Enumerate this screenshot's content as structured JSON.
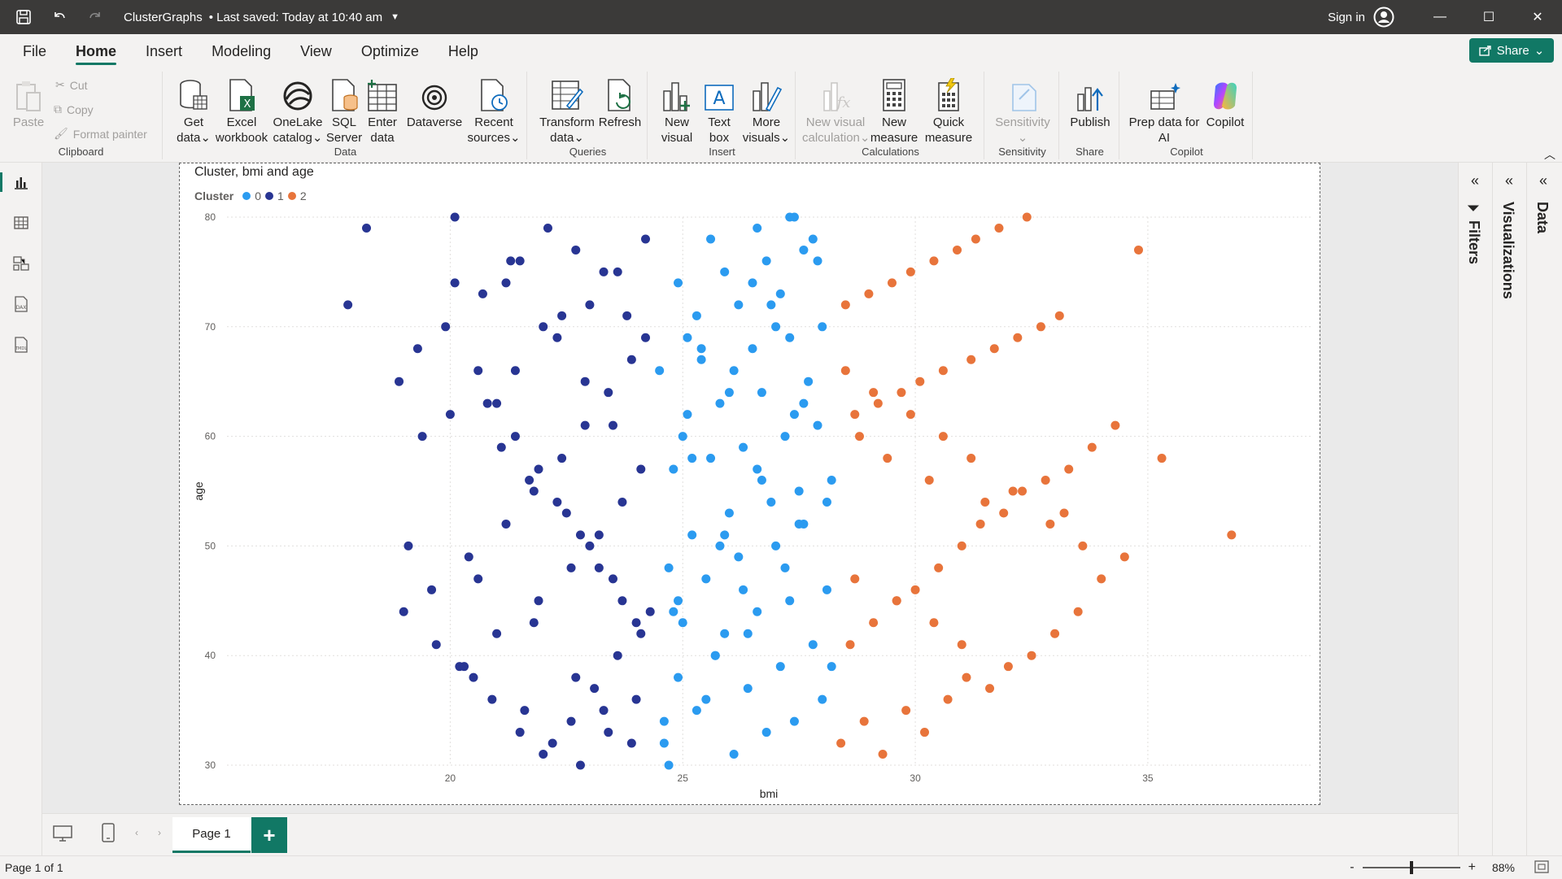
{
  "titlebar": {
    "file_name": "ClusterGraphs",
    "saved_status": "Last saved: Today at 10:40 am",
    "sign_in": "Sign in"
  },
  "menu": {
    "items": [
      "File",
      "Home",
      "Insert",
      "Modeling",
      "View",
      "Optimize",
      "Help"
    ],
    "active": "Home",
    "share": "Share"
  },
  "ribbon": {
    "clipboard": {
      "label": "Clipboard",
      "paste": "Paste",
      "cut": "Cut",
      "copy": "Copy",
      "format_painter": "Format painter"
    },
    "data": {
      "label": "Data",
      "get_data": [
        "Get",
        "data"
      ],
      "excel": [
        "Excel",
        "workbook"
      ],
      "onelake": [
        "OneLake",
        "catalog"
      ],
      "sql": [
        "SQL",
        "Server"
      ],
      "enter": [
        "Enter",
        "data"
      ],
      "dataverse": [
        "Dataverse"
      ],
      "recent": [
        "Recent",
        "sources"
      ]
    },
    "queries": {
      "label": "Queries",
      "transform": [
        "Transform",
        "data"
      ],
      "refresh": [
        "Refresh"
      ]
    },
    "insert": {
      "label": "Insert",
      "new_visual": [
        "New",
        "visual"
      ],
      "text_box": [
        "Text",
        "box"
      ],
      "more_visuals": [
        "More",
        "visuals"
      ]
    },
    "calculations": {
      "label": "Calculations",
      "new_visual_calc": [
        "New visual",
        "calculation"
      ],
      "new_measure": [
        "New",
        "measure"
      ],
      "quick_measure": [
        "Quick",
        "measure"
      ]
    },
    "sensitivity": {
      "label": "Sensitivity",
      "sensitivity": [
        "Sensitivity"
      ]
    },
    "share": {
      "label": "Share",
      "publish": [
        "Publish"
      ]
    },
    "copilot": {
      "label": "Copilot",
      "prep": [
        "Prep data for",
        "AI"
      ],
      "copilot": [
        "Copilot"
      ]
    }
  },
  "panes": {
    "filters": "Filters",
    "visualizations": "Visualizations",
    "data": "Data"
  },
  "pages": {
    "current": "Page 1",
    "status": "Page 1 of 1",
    "zoom": "88%"
  },
  "colors": {
    "cluster0": "#2b9bf0",
    "cluster1": "#283593",
    "cluster2": "#e8743b",
    "accent": "#117865"
  },
  "chart_data": {
    "type": "scatter",
    "title": "Cluster, bmi and age",
    "legend_title": "Cluster",
    "legend_placement": "top-left",
    "xlabel": "bmi",
    "ylabel": "age",
    "xlim": [
      15.2,
      38.5
    ],
    "ylim": [
      30,
      80
    ],
    "x_ticks": [
      20,
      25,
      30,
      35
    ],
    "y_ticks": [
      30,
      40,
      50,
      60,
      70,
      80
    ],
    "grid": true,
    "series": [
      {
        "name": "0",
        "x": [
          24.6,
          25.3,
          26.1,
          26.8,
          27.4,
          28.0,
          24.9,
          25.7,
          26.4,
          27.1,
          27.8,
          25.0,
          25.9,
          26.6,
          27.3,
          28.1,
          24.7,
          25.5,
          26.2,
          27.0,
          27.6,
          25.2,
          26.0,
          26.9,
          27.5,
          28.2,
          24.8,
          25.6,
          26.3,
          27.2,
          27.9,
          25.1,
          25.8,
          26.7,
          27.7,
          24.5,
          25.4,
          26.5,
          27.3,
          28.0,
          25.3,
          26.2,
          27.1,
          24.9,
          25.9,
          26.8,
          27.6,
          25.6,
          26.6,
          27.4,
          24.7,
          25.5,
          26.4,
          27.2,
          28.1,
          25.0,
          26.1,
          26.9,
          27.8,
          24.6,
          25.7,
          26.3,
          27.5,
          25.2,
          26.0,
          27.0,
          27.9,
          24.8,
          25.8,
          26.7,
          27.4,
          25.4,
          26.5,
          27.3,
          28.2,
          24.9,
          25.9,
          26.6,
          27.6,
          25.1
        ],
        "y": [
          32,
          35,
          31,
          33,
          34,
          36,
          38,
          40,
          37,
          39,
          41,
          43,
          42,
          44,
          45,
          46,
          48,
          47,
          49,
          50,
          52,
          51,
          53,
          54,
          55,
          56,
          57,
          58,
          59,
          60,
          61,
          62,
          63,
          64,
          65,
          66,
          67,
          68,
          69,
          70,
          71,
          72,
          73,
          74,
          75,
          76,
          77,
          78,
          79,
          80,
          30,
          36,
          42,
          48,
          54,
          60,
          66,
          72,
          78,
          34,
          40,
          46,
          52,
          58,
          64,
          70,
          76,
          44,
          50,
          56,
          62,
          68,
          74,
          80,
          39,
          45,
          51,
          57,
          63,
          69
        ]
      },
      {
        "name": "1",
        "x": [
          17.8,
          18.2,
          19.3,
          19.0,
          20.1,
          20.6,
          21.0,
          21.4,
          21.9,
          22.3,
          22.8,
          23.2,
          23.7,
          24.1,
          20.3,
          20.9,
          21.5,
          22.0,
          22.6,
          23.1,
          23.6,
          24.0,
          19.6,
          20.4,
          21.2,
          21.8,
          22.4,
          22.9,
          23.4,
          23.9,
          19.9,
          20.7,
          21.3,
          22.1,
          22.7,
          23.3,
          23.8,
          24.2,
          18.9,
          20.0,
          21.1,
          21.7,
          22.5,
          23.0,
          23.5,
          24.3,
          19.7,
          20.5,
          21.6,
          22.2,
          22.8,
          23.4,
          24.0,
          20.2,
          21.0,
          21.9,
          22.6,
          23.2,
          23.7,
          24.1,
          19.4,
          20.8,
          21.4,
          22.3,
          23.0,
          23.6,
          24.2,
          20.1,
          21.2,
          22.0,
          22.9,
          23.5,
          19.1,
          20.6,
          21.8,
          22.7,
          23.3,
          23.9,
          21.5,
          22.4
        ],
        "y": [
          72,
          79,
          68,
          44,
          74,
          66,
          63,
          60,
          57,
          54,
          51,
          48,
          45,
          42,
          39,
          36,
          33,
          31,
          34,
          37,
          40,
          43,
          46,
          49,
          52,
          55,
          58,
          61,
          64,
          67,
          70,
          73,
          76,
          79,
          77,
          75,
          71,
          69,
          65,
          62,
          59,
          56,
          53,
          50,
          47,
          44,
          41,
          38,
          35,
          32,
          30,
          33,
          36,
          39,
          42,
          45,
          48,
          51,
          54,
          57,
          60,
          63,
          66,
          69,
          72,
          75,
          78,
          80,
          74,
          70,
          65,
          61,
          50,
          47,
          43,
          38,
          35,
          32,
          76,
          71
        ]
      },
      {
        "name": "2",
        "x": [
          28.4,
          28.9,
          29.3,
          29.8,
          30.2,
          30.7,
          31.1,
          31.6,
          32.0,
          32.5,
          33.0,
          33.5,
          34.0,
          34.5,
          35.3,
          36.8,
          28.6,
          29.1,
          29.6,
          30.0,
          30.5,
          31.0,
          31.4,
          31.9,
          32.3,
          32.8,
          33.3,
          33.8,
          34.3,
          28.7,
          29.2,
          29.7,
          30.1,
          30.6,
          31.2,
          31.7,
          32.2,
          32.7,
          33.1,
          28.5,
          29.0,
          29.5,
          29.9,
          30.4,
          30.9,
          31.3,
          31.8,
          32.4,
          28.8,
          29.4,
          30.3,
          31.5,
          32.9,
          33.6,
          34.8,
          28.5,
          29.1,
          29.9,
          30.6,
          31.2,
          32.1,
          33.2,
          28.7,
          29.6,
          30.4,
          31.0
        ],
        "y": [
          32,
          34,
          31,
          35,
          33,
          36,
          38,
          37,
          39,
          40,
          42,
          44,
          47,
          49,
          58,
          51,
          41,
          43,
          45,
          46,
          48,
          50,
          52,
          53,
          55,
          56,
          57,
          59,
          61,
          62,
          63,
          64,
          65,
          66,
          67,
          68,
          69,
          70,
          71,
          72,
          73,
          74,
          75,
          76,
          77,
          78,
          79,
          80,
          60,
          58,
          56,
          54,
          52,
          50,
          77,
          66,
          64,
          62,
          60,
          58,
          55,
          53,
          47,
          45,
          43,
          41
        ]
      }
    ]
  }
}
